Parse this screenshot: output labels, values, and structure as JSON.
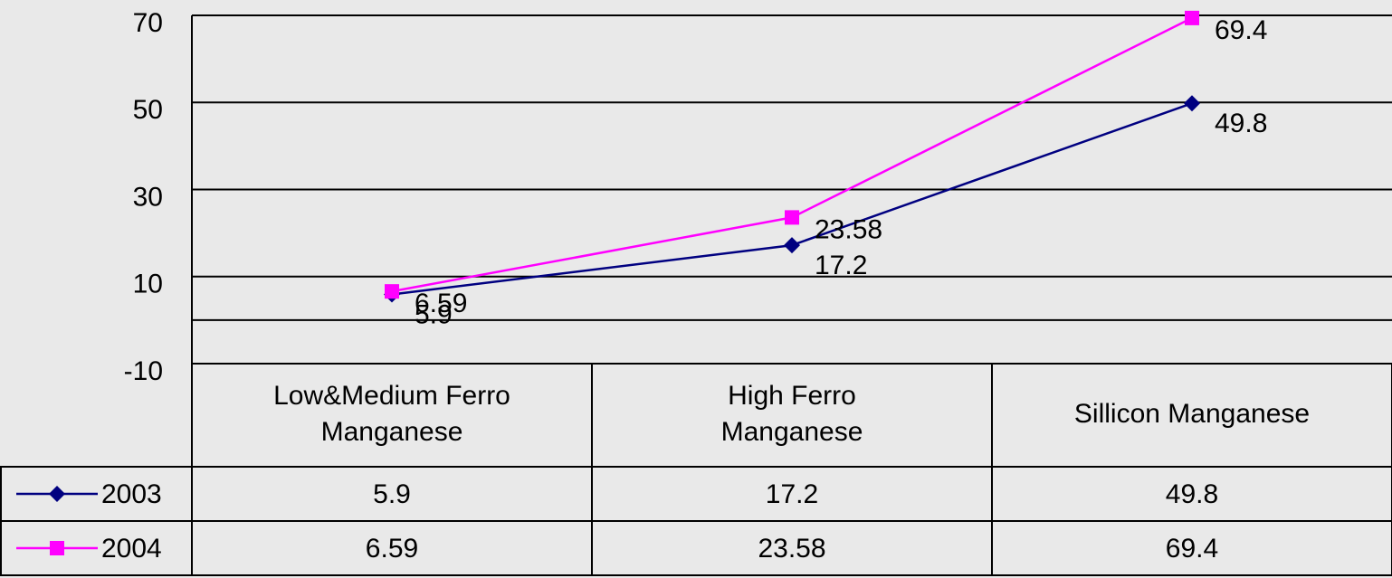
{
  "chart_data": {
    "type": "line",
    "categories": [
      "Low&Medium Ferro Manganese",
      "High Ferro Manganese",
      "Sillicon Manganese"
    ],
    "series": [
      {
        "name": "2003",
        "color": "#000080",
        "marker": "diamond",
        "values": [
          5.9,
          17.2,
          49.8
        ]
      },
      {
        "name": "2004",
        "color": "#ff00ff",
        "marker": "square",
        "values": [
          6.59,
          23.58,
          69.4
        ]
      }
    ],
    "ylim": [
      -10,
      70
    ],
    "yticks": [
      -10,
      10,
      30,
      50,
      70
    ],
    "grid": true,
    "data_table": true
  }
}
